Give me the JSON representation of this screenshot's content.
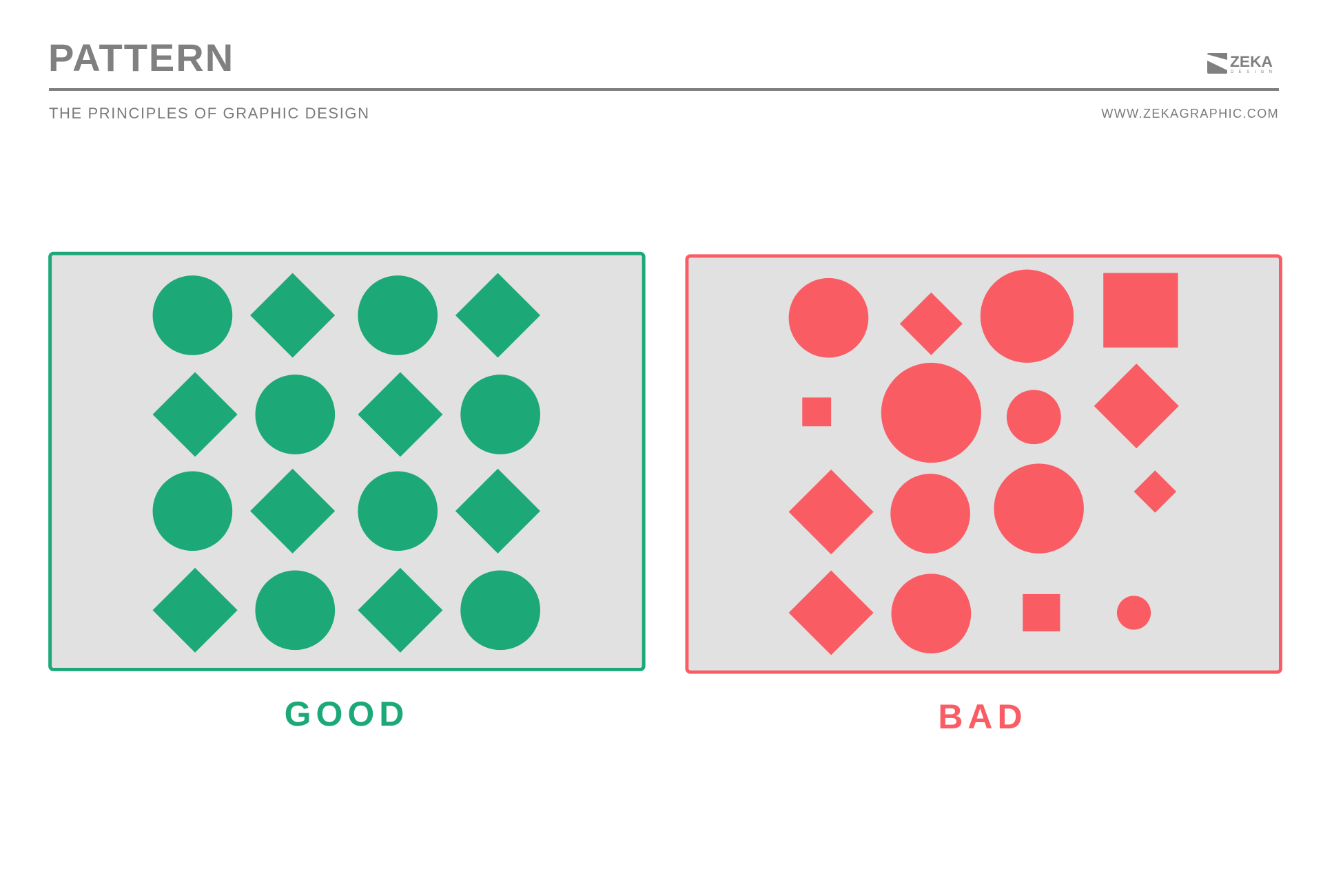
{
  "header": {
    "title": "PATTERN",
    "subtitle": "THE PRINCIPLES OF GRAPHIC DESIGN",
    "url": "WWW.ZEKAGRAPHIC.COM",
    "logo": {
      "text": "ZEKA",
      "subtext": "DESIGN"
    }
  },
  "colors": {
    "text_gray": "#808080",
    "panel_fill": "#e1e1e1",
    "good": "#1ca877",
    "bad": "#fa5c64"
  },
  "panels": {
    "good": {
      "label": "GOOD",
      "pattern_rows": [
        [
          "circle",
          "diamond",
          "circle",
          "diamond"
        ],
        [
          "diamond",
          "circle",
          "diamond",
          "circle"
        ],
        [
          "circle",
          "diamond",
          "circle",
          "diamond"
        ],
        [
          "diamond",
          "circle",
          "diamond",
          "circle"
        ]
      ]
    },
    "bad": {
      "label": "BAD",
      "shapes": [
        "circle",
        "diamond",
        "circle",
        "square",
        "square",
        "circle",
        "circle",
        "diamond",
        "diamond",
        "circle",
        "circle",
        "diamond",
        "diamond",
        "circle",
        "square",
        "circle"
      ]
    }
  }
}
